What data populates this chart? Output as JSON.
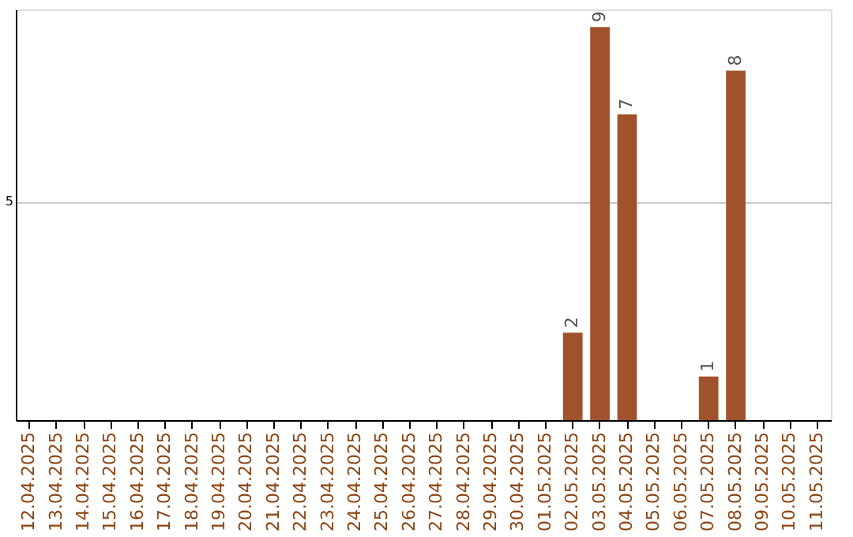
{
  "chart_data": {
    "type": "bar",
    "categories": [
      "12.04.2025",
      "13.04.2025",
      "14.04.2025",
      "15.04.2025",
      "16.04.2025",
      "17.04.2025",
      "18.04.2025",
      "19.04.2025",
      "20.04.2025",
      "21.04.2025",
      "22.04.2025",
      "23.04.2025",
      "24.04.2025",
      "25.04.2025",
      "26.04.2025",
      "27.04.2025",
      "28.04.2025",
      "29.04.2025",
      "30.04.2025",
      "01.05.2025",
      "02.05.2025",
      "03.05.2025",
      "04.05.2025",
      "05.05.2025",
      "06.05.2025",
      "07.05.2025",
      "08.05.2025",
      "09.05.2025",
      "10.05.2025",
      "11.05.2025"
    ],
    "values": [
      null,
      null,
      null,
      null,
      null,
      null,
      null,
      null,
      null,
      null,
      null,
      null,
      null,
      null,
      null,
      null,
      null,
      null,
      null,
      null,
      2,
      9,
      7,
      null,
      null,
      1,
      8,
      null,
      null,
      null
    ],
    "color": "#a0522d",
    "ylim": [
      0,
      9.4
    ],
    "yticks": [
      5
    ],
    "grid": "y",
    "data_labels": true
  }
}
